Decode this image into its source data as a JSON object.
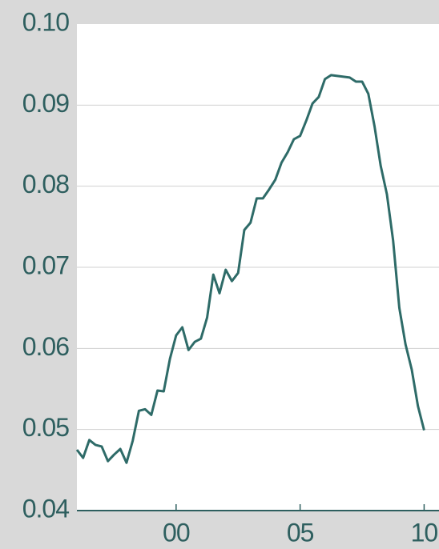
{
  "chart_data": {
    "type": "line",
    "x": [
      1996,
      1996.25,
      1996.5,
      1996.75,
      1997,
      1997.25,
      1997.5,
      1997.75,
      1998,
      1998.25,
      1998.5,
      1998.75,
      1999,
      1999.25,
      1999.5,
      1999.75,
      2000,
      2000.25,
      2000.5,
      2000.75,
      2001,
      2001.25,
      2001.5,
      2001.75,
      2002,
      2002.25,
      2002.5,
      2002.75,
      2003,
      2003.25,
      2003.5,
      2003.75,
      2004,
      2004.25,
      2004.5,
      2004.75,
      2005,
      2005.25,
      2005.5,
      2005.75,
      2006,
      2006.25,
      2006.5,
      2006.75,
      2007,
      2007.25,
      2007.5,
      2007.75,
      2008,
      2008.25,
      2008.5,
      2008.75,
      2009,
      2009.25,
      2009.5,
      2009.75,
      2010
    ],
    "series": [
      {
        "color": "#2e6b68",
        "values": [
          0.0475,
          0.0465,
          0.0487,
          0.0481,
          0.0479,
          0.0461,
          0.0469,
          0.0476,
          0.0459,
          0.0486,
          0.0523,
          0.0525,
          0.0518,
          0.0548,
          0.0547,
          0.0587,
          0.0616,
          0.0626,
          0.0598,
          0.0608,
          0.0612,
          0.0638,
          0.0691,
          0.0668,
          0.0697,
          0.0683,
          0.0693,
          0.0746,
          0.0755,
          0.0785,
          0.0785,
          0.0796,
          0.0808,
          0.0829,
          0.0842,
          0.0858,
          0.0862,
          0.0881,
          0.0902,
          0.091,
          0.0932,
          0.0937,
          0.0936,
          0.0935,
          0.0934,
          0.0929,
          0.0929,
          0.0914,
          0.0874,
          0.0825,
          0.079,
          0.0733,
          0.065,
          0.0605,
          0.0574,
          0.0529,
          0.0499
        ]
      }
    ],
    "xlim": [
      1996,
      2010.6
    ],
    "xticks": [
      {
        "value": 2000,
        "label": "00"
      },
      {
        "value": 2005,
        "label": "05"
      },
      {
        "value": 2010,
        "label": "10"
      }
    ],
    "ylim": [
      0.04,
      0.1
    ],
    "yticks": [
      0.04,
      0.05,
      0.06,
      0.07,
      0.08,
      0.09,
      {
        "value": 0.1,
        "label": "0.10"
      }
    ],
    "grid": true
  }
}
